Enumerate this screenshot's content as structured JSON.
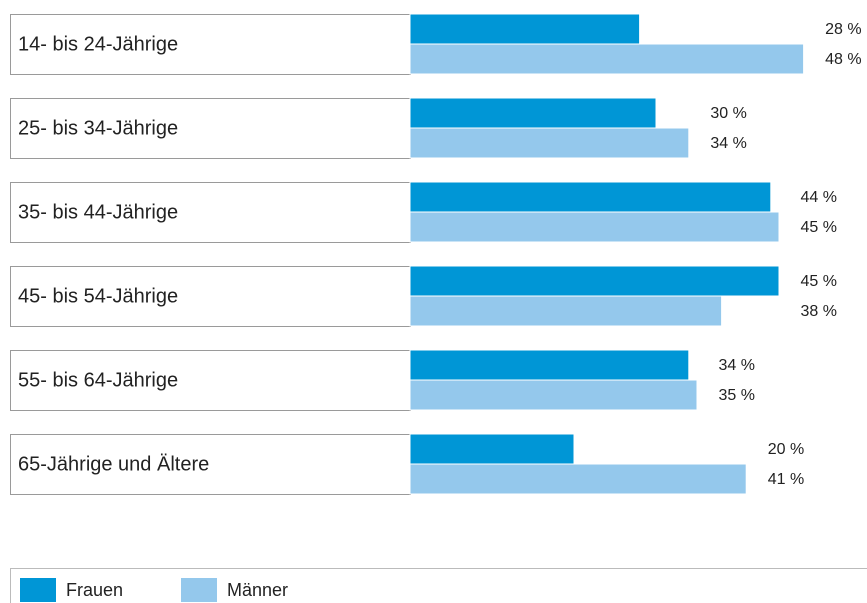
{
  "chart_data": {
    "type": "bar",
    "categories": [
      "14- bis 24-Jährige",
      "25- bis 34-Jährige",
      "35- bis 44-Jährige",
      "45- bis 54-Jährige",
      "55- bis 64-Jährige",
      "65-Jährige und Ältere"
    ],
    "series": [
      {
        "name": "Frauen",
        "color": "#0096d6",
        "values": [
          28,
          30,
          44,
          45,
          34,
          20
        ],
        "value_labels": [
          "28 %",
          "30 %",
          "44 %",
          "45 %",
          "34 %",
          "20 %"
        ]
      },
      {
        "name": "Männer",
        "color": "#94c8ec",
        "values": [
          48,
          34,
          45,
          38,
          35,
          41
        ],
        "value_labels": [
          "48 %",
          "34 %",
          "45 %",
          "38 %",
          "35 %",
          "41 %"
        ]
      }
    ]
  }
}
